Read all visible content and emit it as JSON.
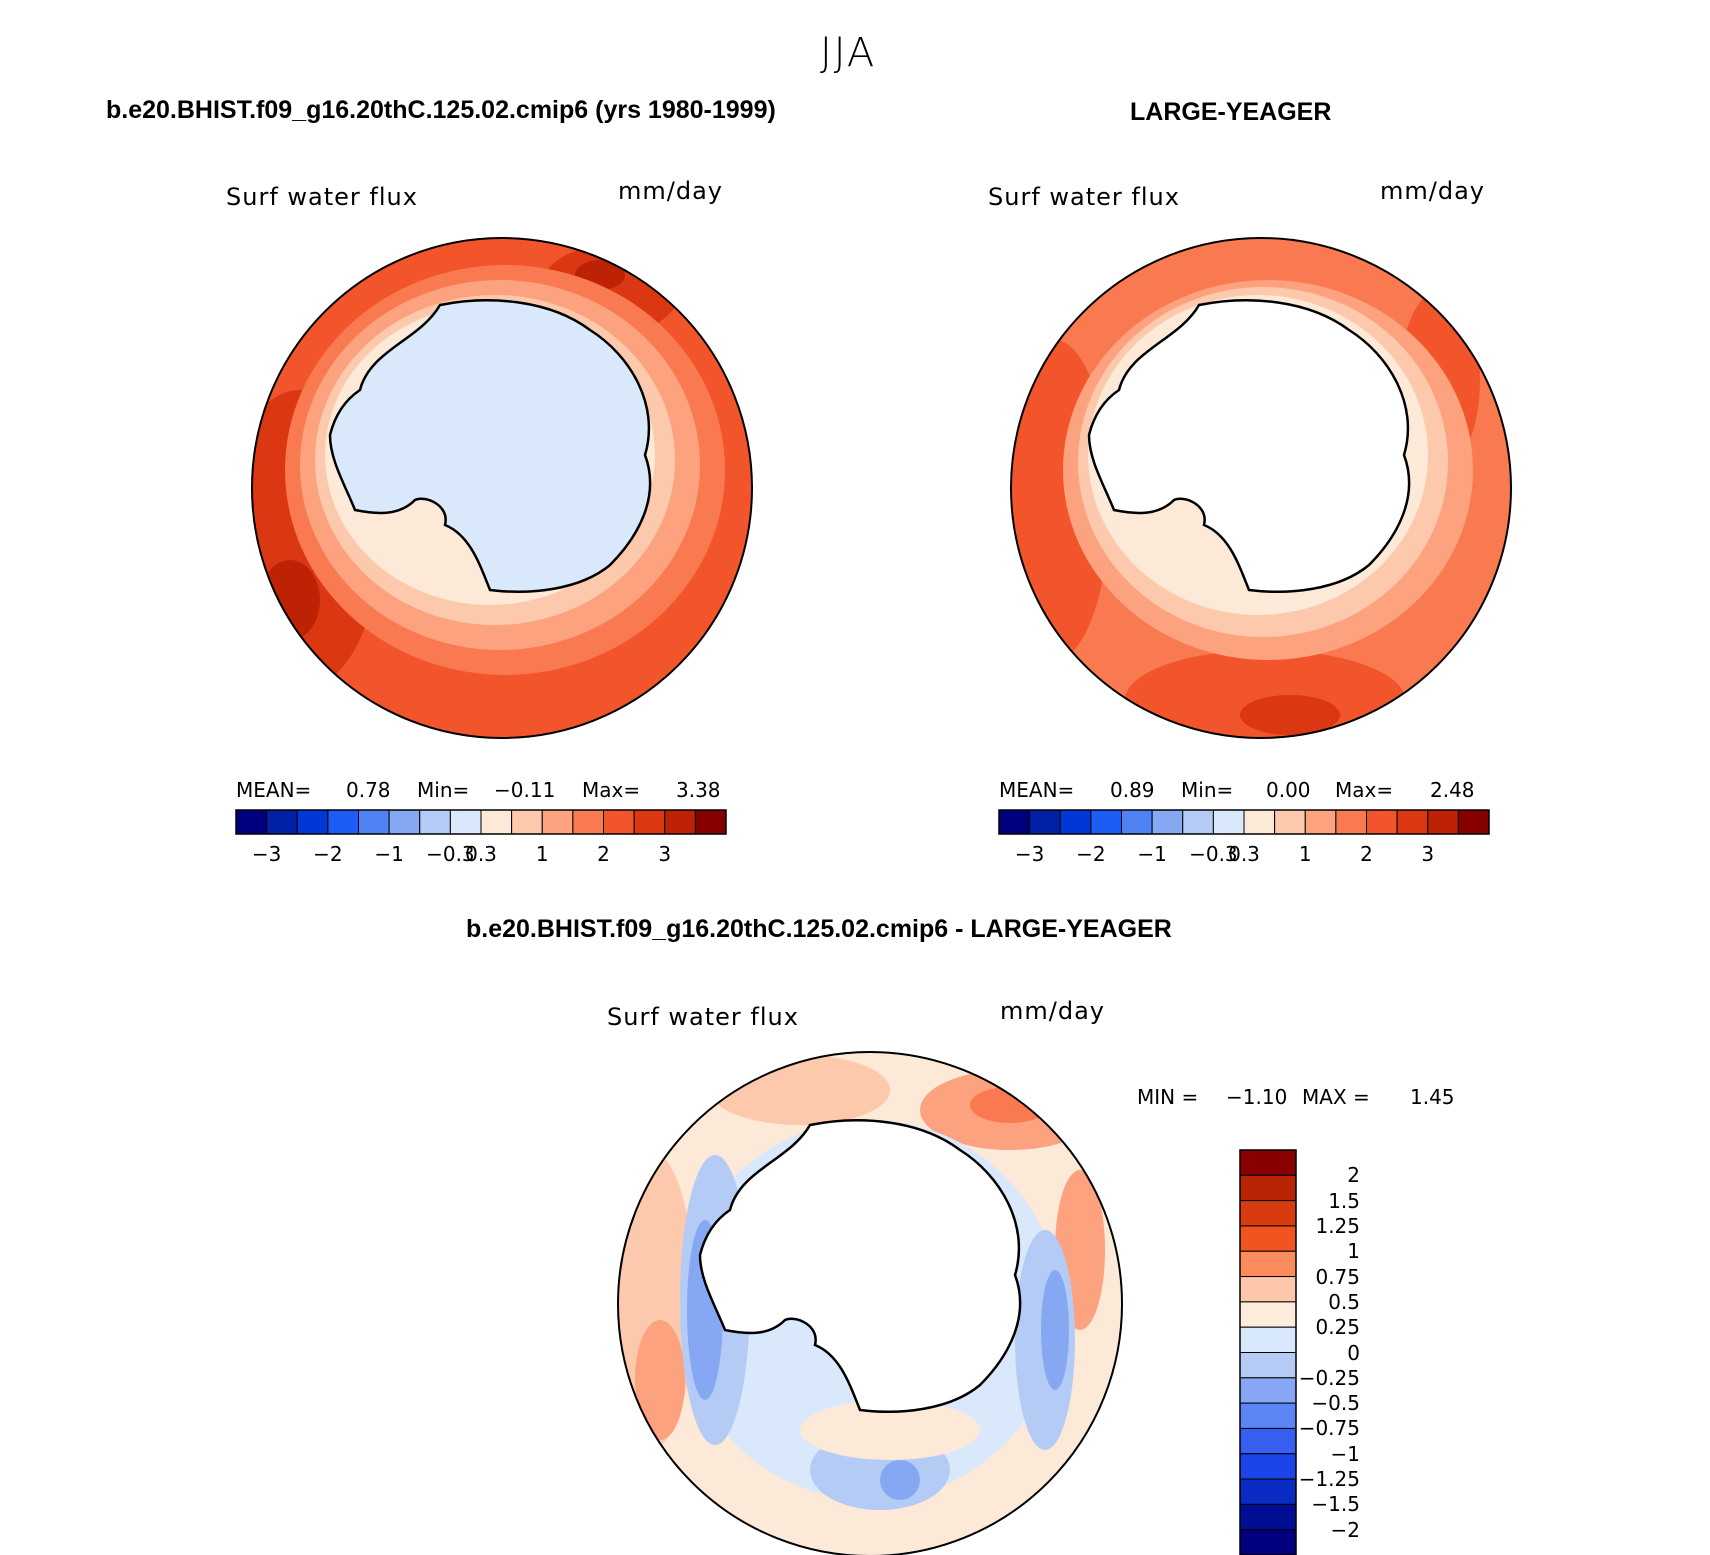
{
  "season_title": "JJA",
  "panels": [
    {
      "title": "b.e20.BHIST.f09_g16.20thC.125.02.cmip6 (yrs 1980-1999)",
      "variable": "Surf water flux",
      "units": "mm/day",
      "stats": {
        "mean_label": "MEAN=",
        "mean": "0.78",
        "min_label": "Min=",
        "min": "−0.11",
        "max_label": "Max=",
        "max": "3.38"
      }
    },
    {
      "title": "LARGE-YEAGER",
      "variable": "Surf water flux",
      "units": "mm/day",
      "stats": {
        "mean_label": "MEAN=",
        "mean": "0.89",
        "min_label": "Min=",
        "min": "0.00",
        "max_label": "Max=",
        "max": "2.48"
      }
    },
    {
      "title": "b.e20.BHIST.f09_g16.20thC.125.02.cmip6 - LARGE-YEAGER",
      "variable": "Surf water flux",
      "units": "mm/day",
      "stats": {
        "min_label": "MIN =",
        "min": "−1.10",
        "max_label": "MAX =",
        "max": "1.45"
      }
    }
  ],
  "colorbar_abs": {
    "colors": [
      "#00007e",
      "#0020a8",
      "#0038d8",
      "#1d5cf5",
      "#4f82f2",
      "#86a8f2",
      "#b4cbf6",
      "#d9e8fa",
      "#fde9d8",
      "#fcc9ac",
      "#fca27f",
      "#f97a51",
      "#f2552b",
      "#db3713",
      "#bd2205",
      "#860000"
    ],
    "tick_labels": [
      "−3",
      "−2",
      "−1",
      "−0.3",
      "0.3",
      "1",
      "2",
      "3"
    ],
    "tick_positions": [
      1,
      3,
      5,
      7,
      8,
      10,
      12,
      14
    ]
  },
  "colorbar_diff": {
    "colors_top_to_bottom": [
      "#8a0000",
      "#b82404",
      "#d93a10",
      "#f0551f",
      "#fb8a5c",
      "#fdc7ac",
      "#fdebdc",
      "#d7e8fb",
      "#b5cbf6",
      "#87a6f3",
      "#5a85f2",
      "#3760f2",
      "#1d44e8",
      "#0a2bc4",
      "#000e96",
      "#00007e"
    ],
    "tick_labels": [
      "2",
      "1.5",
      "1.25",
      "1",
      "0.75",
      "0.5",
      "0.25",
      "0",
      "−0.25",
      "−0.5",
      "−0.75",
      "−1",
      "−1.25",
      "−1.5",
      "−2"
    ]
  }
}
